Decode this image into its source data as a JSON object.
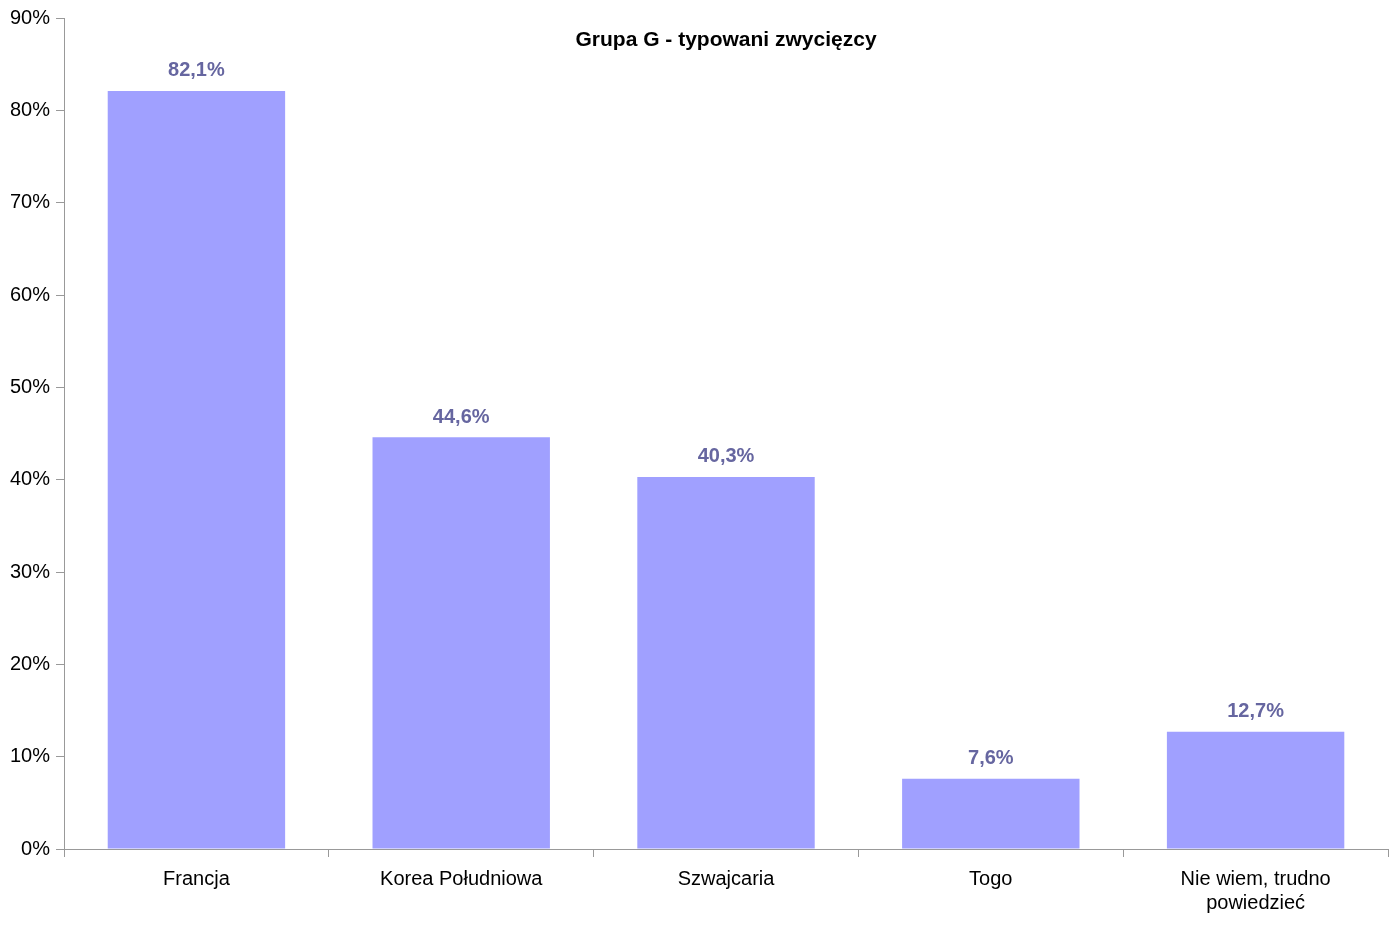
{
  "chart_data": {
    "type": "bar",
    "title": "Grupa G - typowani zwycięzcy",
    "categories": [
      "Francja",
      "Korea Południowa",
      "Szwajcaria",
      "Togo",
      "Nie wiem, trudno powiedzieć"
    ],
    "values": [
      82.1,
      44.6,
      40.3,
      7.6,
      12.7
    ],
    "value_labels": [
      "82,1%",
      "44,6%",
      "40,3%",
      "7,6%",
      "12,7%"
    ],
    "color": "#a0a0ff",
    "ylim": [
      0,
      90
    ],
    "yticks": [
      {
        "value": 0,
        "label": "0%"
      },
      {
        "value": 10,
        "label": "10%"
      },
      {
        "value": 20,
        "label": "20%"
      },
      {
        "value": 30,
        "label": "30%"
      },
      {
        "value": 40,
        "label": "40%"
      },
      {
        "value": 50,
        "label": "50%"
      },
      {
        "value": 60,
        "label": "60%"
      },
      {
        "value": 70,
        "label": "70%"
      },
      {
        "value": 80,
        "label": "80%"
      },
      {
        "value": 90,
        "label": "90%"
      }
    ],
    "grid": false,
    "legend": false
  }
}
